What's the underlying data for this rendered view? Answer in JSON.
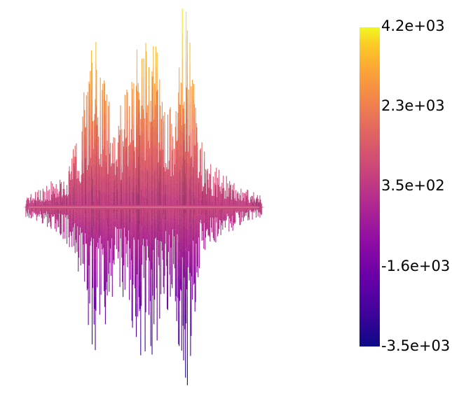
{
  "colorbar": {
    "tick_labels": [
      "4.2e+03",
      "2.3e+03",
      "3.5e+02",
      "-1.6e+03",
      "-3.5e+03"
    ],
    "range": [
      -3500,
      4200
    ],
    "colormap": "plasma",
    "colors": [
      "#0d0887",
      "#6a00a8",
      "#b12a90",
      "#e16462",
      "#fca636",
      "#f0f921"
    ]
  },
  "render": {
    "type": "3d-surface-warp",
    "background": "#ffffff"
  }
}
